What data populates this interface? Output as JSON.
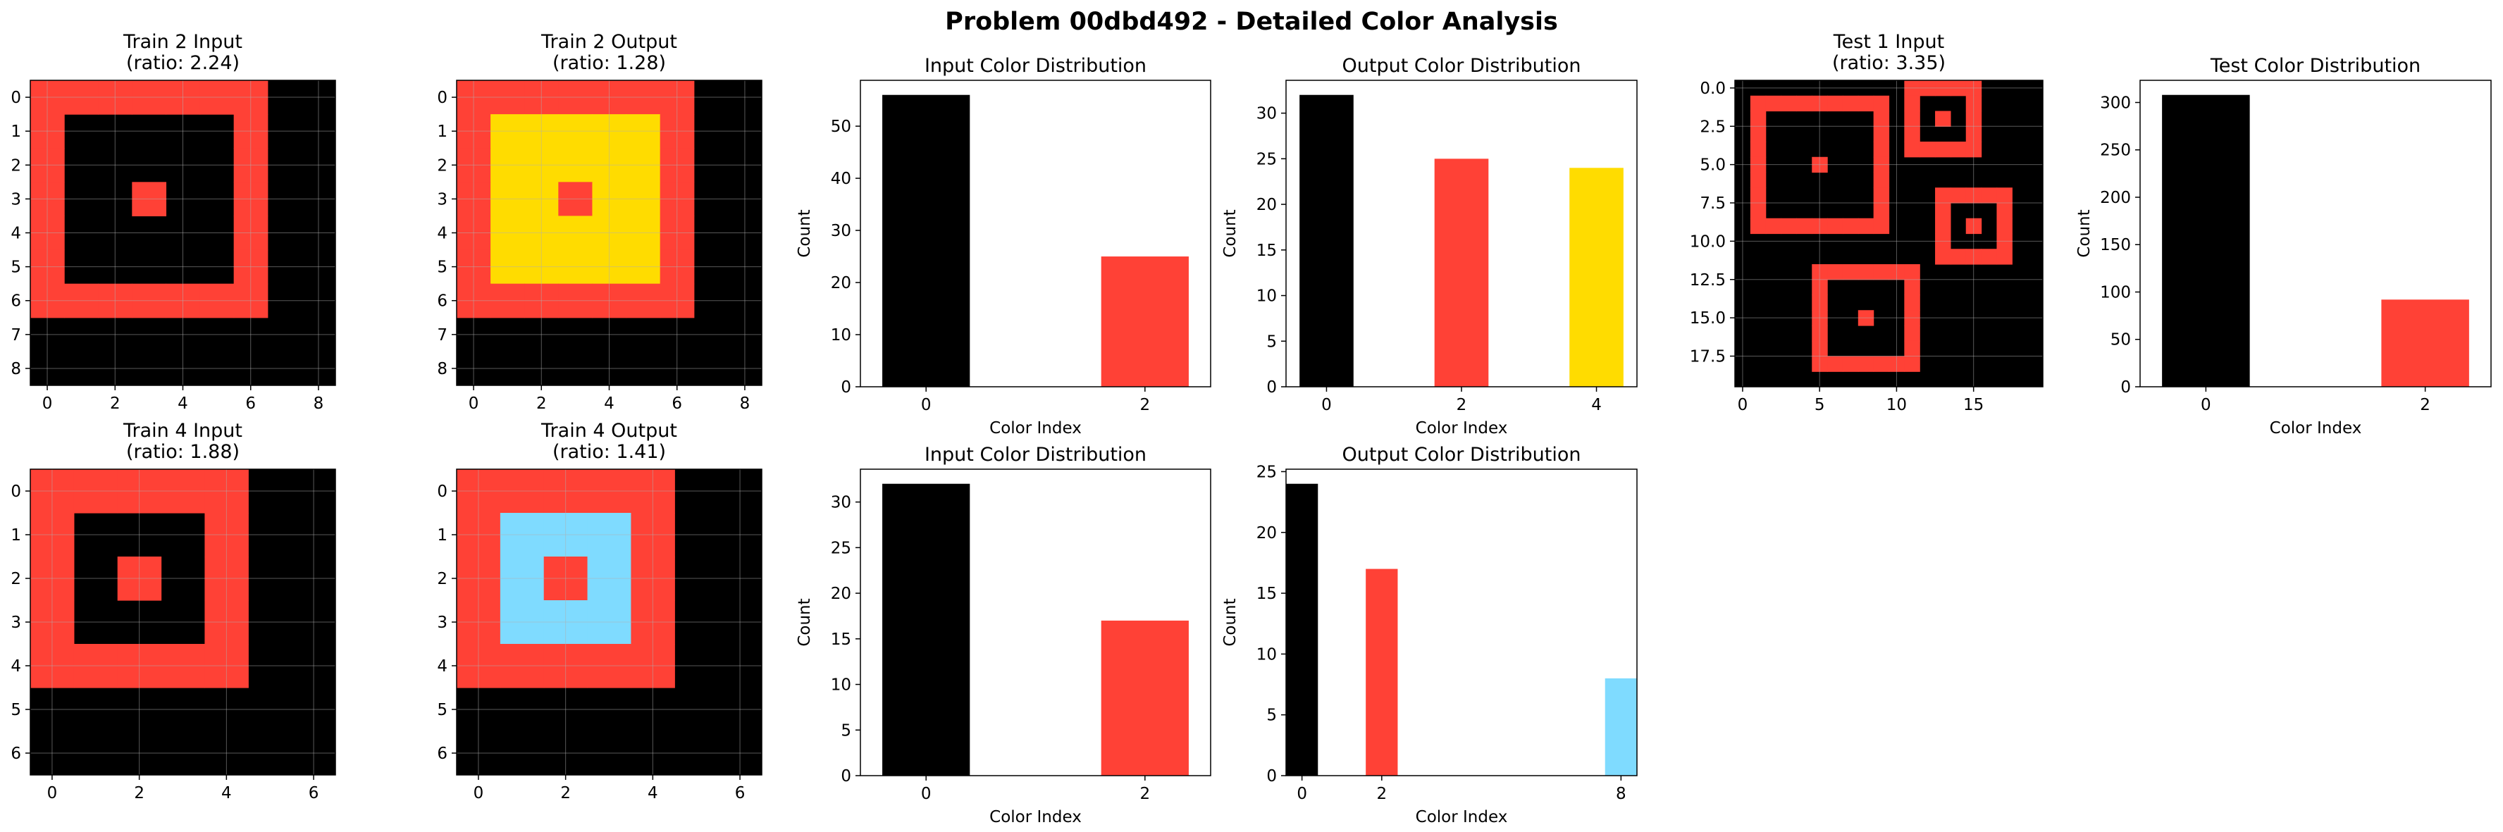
{
  "suptitle": "Problem 00dbd492 - Detailed Color Analysis",
  "palette": {
    "0": "#000000",
    "2": "#FF4136",
    "4": "#FFDC00",
    "8": "#7FDBFF"
  },
  "chart_data": [
    {
      "id": "train2-input",
      "type": "heatmap",
      "title_line1": "Train 2 Input",
      "title_line2": "(ratio: 2.24)",
      "xticks": [
        "0",
        "2",
        "4",
        "6",
        "8"
      ],
      "yticks": [
        "0",
        "1",
        "2",
        "3",
        "4",
        "5",
        "6",
        "7",
        "8"
      ],
      "grid": [
        [
          2,
          2,
          2,
          2,
          2,
          2,
          2,
          0,
          0
        ],
        [
          2,
          0,
          0,
          0,
          0,
          0,
          2,
          0,
          0
        ],
        [
          2,
          0,
          0,
          0,
          0,
          0,
          2,
          0,
          0
        ],
        [
          2,
          0,
          0,
          2,
          0,
          0,
          2,
          0,
          0
        ],
        [
          2,
          0,
          0,
          0,
          0,
          0,
          2,
          0,
          0
        ],
        [
          2,
          0,
          0,
          0,
          0,
          0,
          2,
          0,
          0
        ],
        [
          2,
          2,
          2,
          2,
          2,
          2,
          2,
          0,
          0
        ],
        [
          0,
          0,
          0,
          0,
          0,
          0,
          0,
          0,
          0
        ],
        [
          0,
          0,
          0,
          0,
          0,
          0,
          0,
          0,
          0
        ]
      ]
    },
    {
      "id": "train2-output",
      "type": "heatmap",
      "title_line1": "Train 2 Output",
      "title_line2": "(ratio: 1.28)",
      "xticks": [
        "0",
        "2",
        "4",
        "6",
        "8"
      ],
      "yticks": [
        "0",
        "1",
        "2",
        "3",
        "4",
        "5",
        "6",
        "7",
        "8"
      ],
      "grid": [
        [
          2,
          2,
          2,
          2,
          2,
          2,
          2,
          0,
          0
        ],
        [
          2,
          4,
          4,
          4,
          4,
          4,
          2,
          0,
          0
        ],
        [
          2,
          4,
          4,
          4,
          4,
          4,
          2,
          0,
          0
        ],
        [
          2,
          4,
          4,
          2,
          4,
          4,
          2,
          0,
          0
        ],
        [
          2,
          4,
          4,
          4,
          4,
          4,
          2,
          0,
          0
        ],
        [
          2,
          4,
          4,
          4,
          4,
          4,
          2,
          0,
          0
        ],
        [
          2,
          2,
          2,
          2,
          2,
          2,
          2,
          0,
          0
        ],
        [
          0,
          0,
          0,
          0,
          0,
          0,
          0,
          0,
          0
        ],
        [
          0,
          0,
          0,
          0,
          0,
          0,
          0,
          0,
          0
        ]
      ]
    },
    {
      "id": "train2-input-dist",
      "type": "bar",
      "title": "Input Color Distribution",
      "xlabel": "Color Index",
      "ylabel": "Count",
      "categories": [
        0,
        2
      ],
      "values": [
        56,
        25
      ],
      "xlim": [
        -0.6,
        2.6
      ],
      "ylim": [
        0,
        58.8
      ],
      "yticks": [
        0,
        10,
        20,
        30,
        40,
        50
      ]
    },
    {
      "id": "train2-output-dist",
      "type": "bar",
      "title": "Output Color Distribution",
      "xlabel": "Color Index",
      "ylabel": "Count",
      "categories": [
        0,
        2,
        4
      ],
      "values": [
        32,
        25,
        24
      ],
      "xlim": [
        -0.6,
        4.6
      ],
      "ylim": [
        0,
        33.6
      ],
      "yticks": [
        0,
        5,
        10,
        15,
        20,
        25,
        30
      ]
    },
    {
      "id": "test1-input",
      "type": "heatmap",
      "title_line1": "Test 1 Input",
      "title_line2": "(ratio: 3.35)",
      "xticks": [
        "0",
        "5",
        "10",
        "15"
      ],
      "yticks": [
        "0.0",
        "2.5",
        "5.0",
        "7.5",
        "10.0",
        "12.5",
        "15.0",
        "17.5"
      ],
      "xtick_values": [
        0,
        5,
        10,
        15
      ],
      "ytick_values": [
        0,
        2.5,
        5,
        7.5,
        10,
        12.5,
        15,
        17.5
      ],
      "squares": [
        {
          "r0": 1,
          "c0": 1,
          "size": 9
        },
        {
          "r0": 0,
          "c0": 11,
          "size": 5
        },
        {
          "r0": 7,
          "c0": 13,
          "size": 5
        },
        {
          "r0": 12,
          "c0": 5,
          "size": 7
        }
      ],
      "rows": 20,
      "cols": 20
    },
    {
      "id": "test-dist",
      "type": "bar",
      "title": "Test Color Distribution",
      "xlabel": "Color Index",
      "ylabel": "Count",
      "categories": [
        0,
        2
      ],
      "values": [
        308,
        92
      ],
      "xlim": [
        -0.6,
        2.6
      ],
      "ylim": [
        0,
        323.4
      ],
      "yticks": [
        0,
        50,
        100,
        150,
        200,
        250,
        300
      ]
    },
    {
      "id": "train4-input",
      "type": "heatmap",
      "title_line1": "Train 4 Input",
      "title_line2": "(ratio: 1.88)",
      "xticks": [
        "0",
        "2",
        "4",
        "6"
      ],
      "yticks": [
        "0",
        "1",
        "2",
        "3",
        "4",
        "5",
        "6"
      ],
      "grid": [
        [
          2,
          2,
          2,
          2,
          2,
          0,
          0
        ],
        [
          2,
          0,
          0,
          0,
          2,
          0,
          0
        ],
        [
          2,
          0,
          2,
          0,
          2,
          0,
          0
        ],
        [
          2,
          0,
          0,
          0,
          2,
          0,
          0
        ],
        [
          2,
          2,
          2,
          2,
          2,
          0,
          0
        ],
        [
          0,
          0,
          0,
          0,
          0,
          0,
          0
        ],
        [
          0,
          0,
          0,
          0,
          0,
          0,
          0
        ]
      ]
    },
    {
      "id": "train4-output",
      "type": "heatmap",
      "title_line1": "Train 4 Output",
      "title_line2": "(ratio: 1.41)",
      "xticks": [
        "0",
        "2",
        "4",
        "6"
      ],
      "yticks": [
        "0",
        "1",
        "2",
        "3",
        "4",
        "5",
        "6"
      ],
      "grid": [
        [
          2,
          2,
          2,
          2,
          2,
          0,
          0
        ],
        [
          2,
          8,
          8,
          8,
          2,
          0,
          0
        ],
        [
          2,
          8,
          2,
          8,
          2,
          0,
          0
        ],
        [
          2,
          8,
          8,
          8,
          2,
          0,
          0
        ],
        [
          2,
          2,
          2,
          2,
          2,
          0,
          0
        ],
        [
          0,
          0,
          0,
          0,
          0,
          0,
          0
        ],
        [
          0,
          0,
          0,
          0,
          0,
          0,
          0
        ]
      ]
    },
    {
      "id": "train4-input-dist",
      "type": "bar",
      "title": "Input Color Distribution",
      "xlabel": "Color Index",
      "ylabel": "Count",
      "categories": [
        0,
        2
      ],
      "values": [
        32,
        17
      ],
      "xlim": [
        -0.6,
        2.6
      ],
      "ylim": [
        0,
        33.6
      ],
      "yticks": [
        0,
        5,
        10,
        15,
        20,
        25,
        30
      ]
    },
    {
      "id": "train4-output-dist",
      "type": "bar",
      "title": "Output Color Distribution",
      "xlabel": "Color Index",
      "ylabel": "Count",
      "categories": [
        0,
        2,
        8
      ],
      "values": [
        24,
        17,
        8
      ],
      "xlim": [
        -0.4,
        8.4
      ],
      "ylim": [
        0,
        25.2
      ],
      "yticks": [
        0,
        5,
        10,
        15,
        20,
        25
      ]
    }
  ]
}
